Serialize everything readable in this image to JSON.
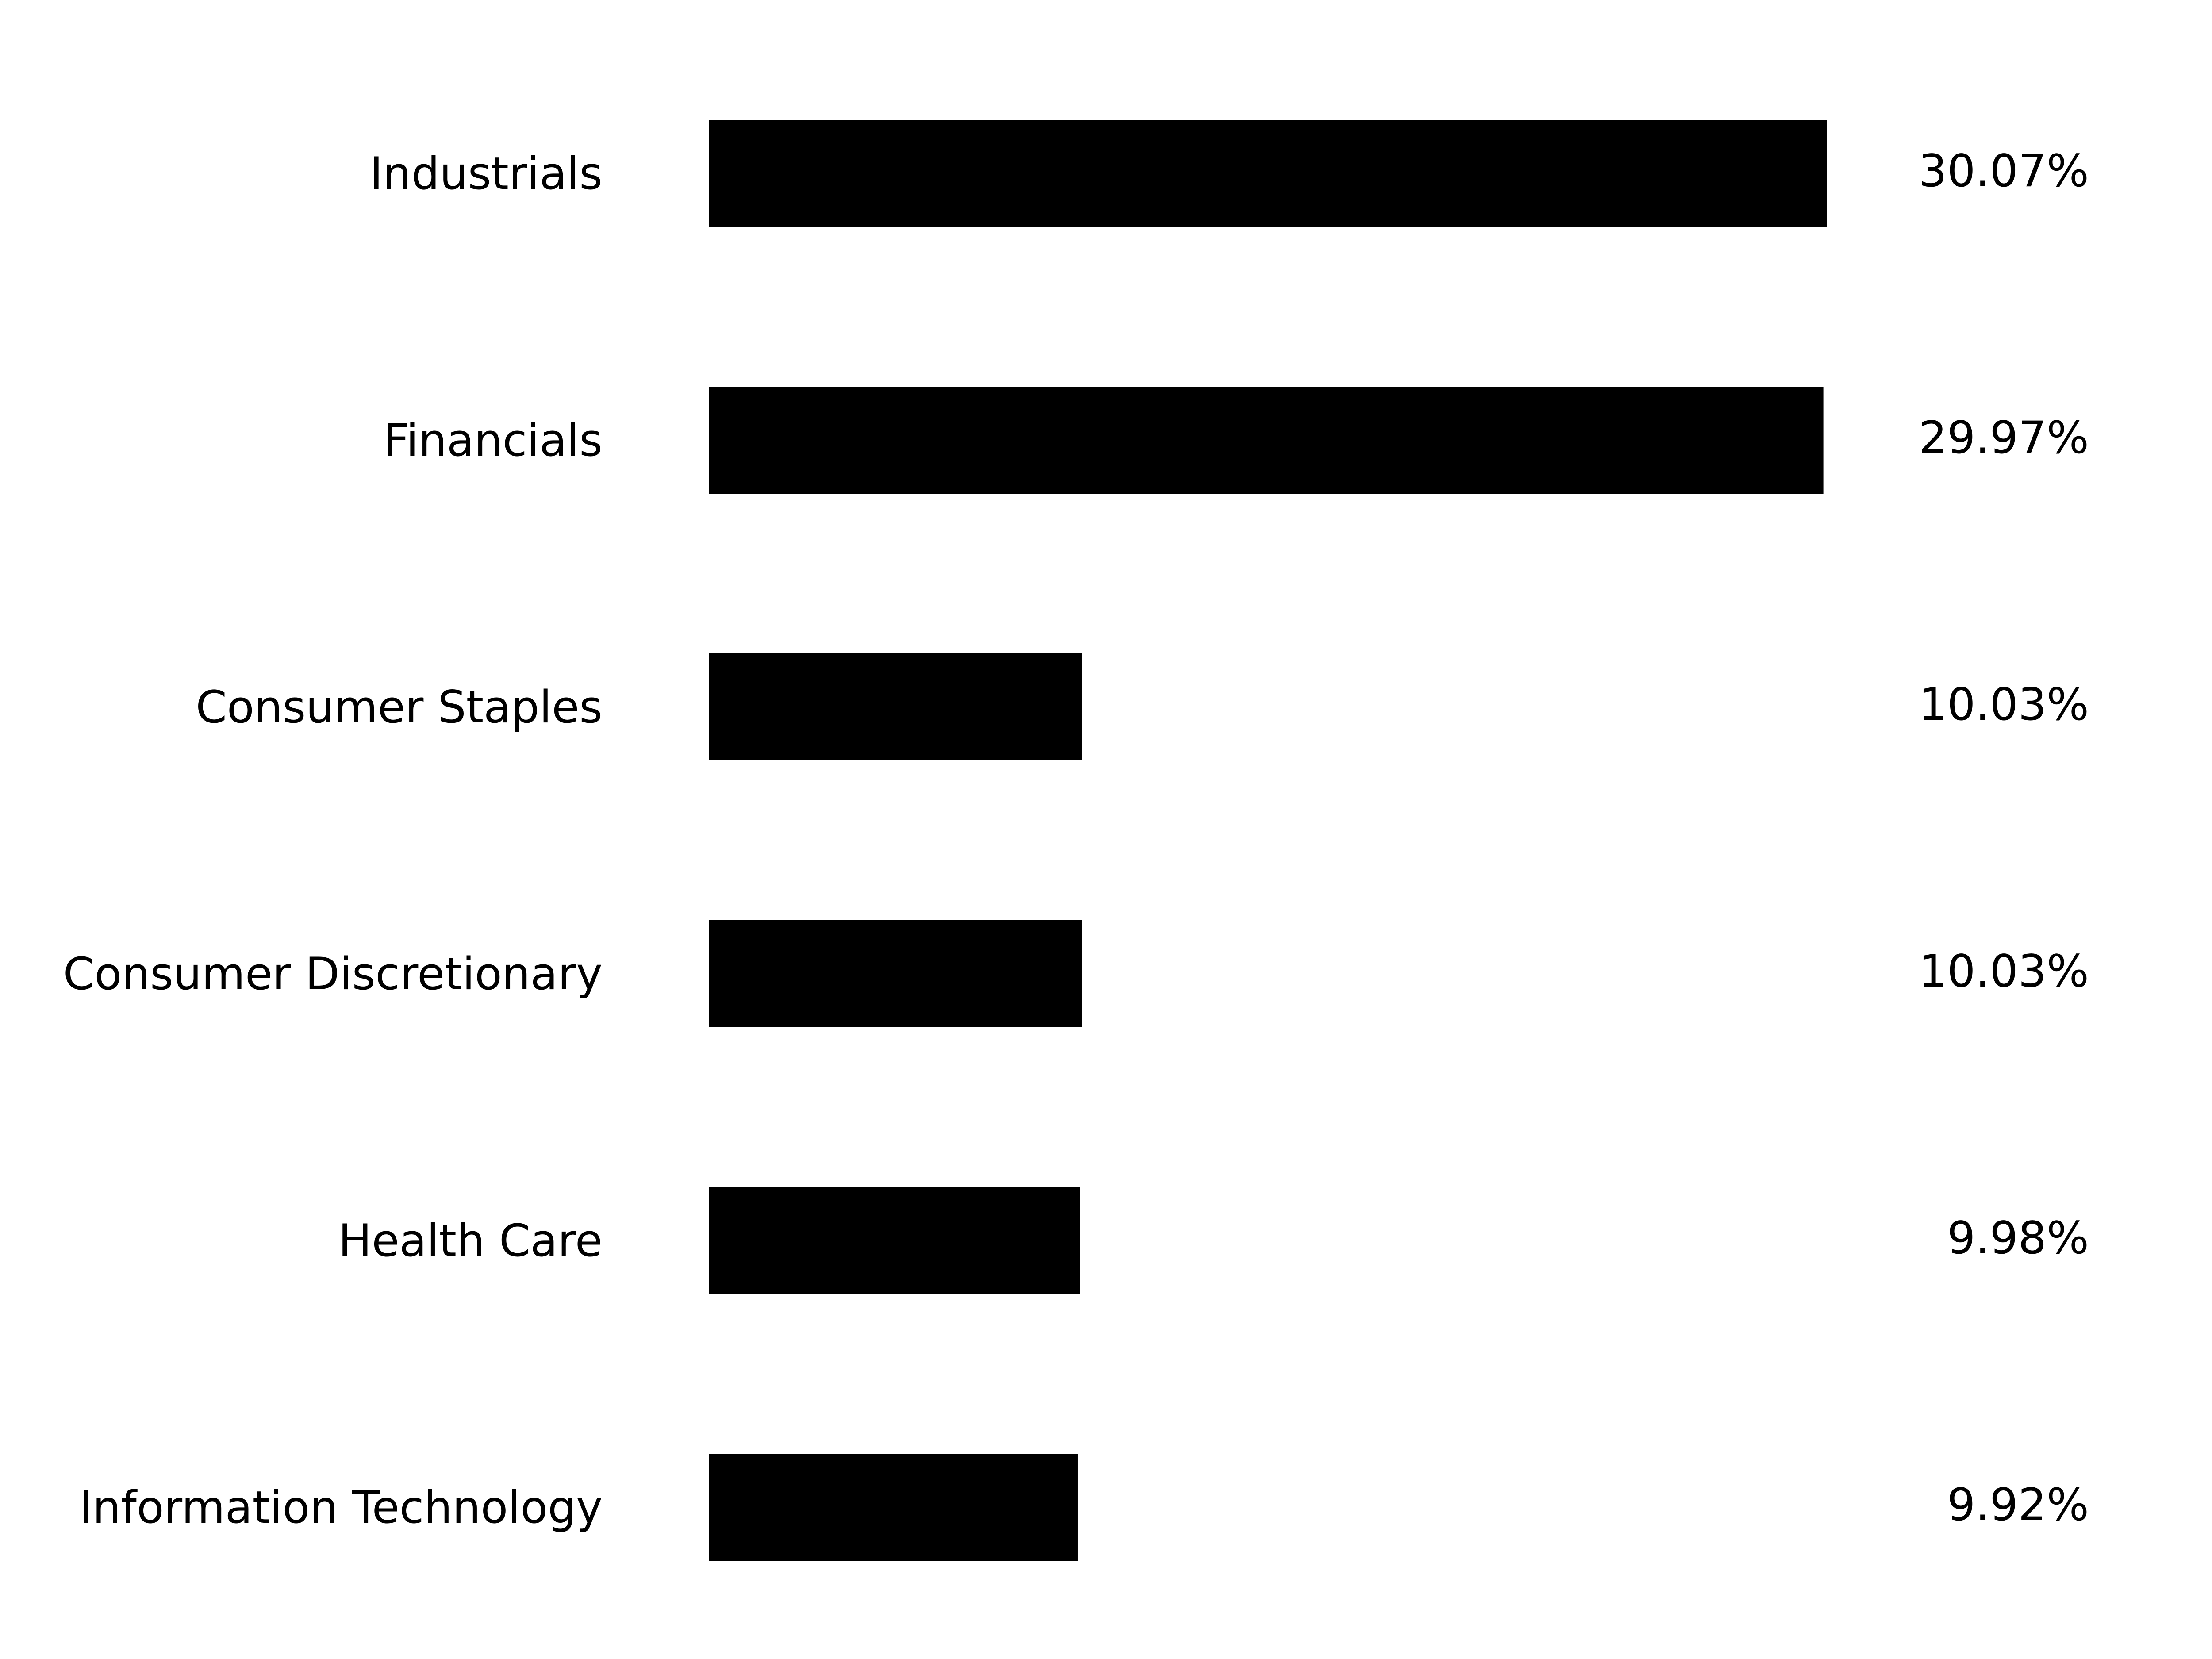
{
  "chart_data": {
    "type": "bar",
    "orientation": "horizontal",
    "categories": [
      "Industrials",
      "Financials",
      "Consumer Staples",
      "Consumer Discretionary",
      "Health Care",
      "Information Technology"
    ],
    "values": [
      30.07,
      29.97,
      10.03,
      10.03,
      9.98,
      9.92
    ],
    "value_labels": [
      "30.07%",
      "29.97%",
      "10.03%",
      "10.03%",
      "9.98%",
      "9.92%"
    ],
    "title": "",
    "xlabel": "",
    "ylabel": "",
    "xlim": [
      0,
      30.07
    ],
    "grid": false,
    "bar_color": "#000000"
  }
}
